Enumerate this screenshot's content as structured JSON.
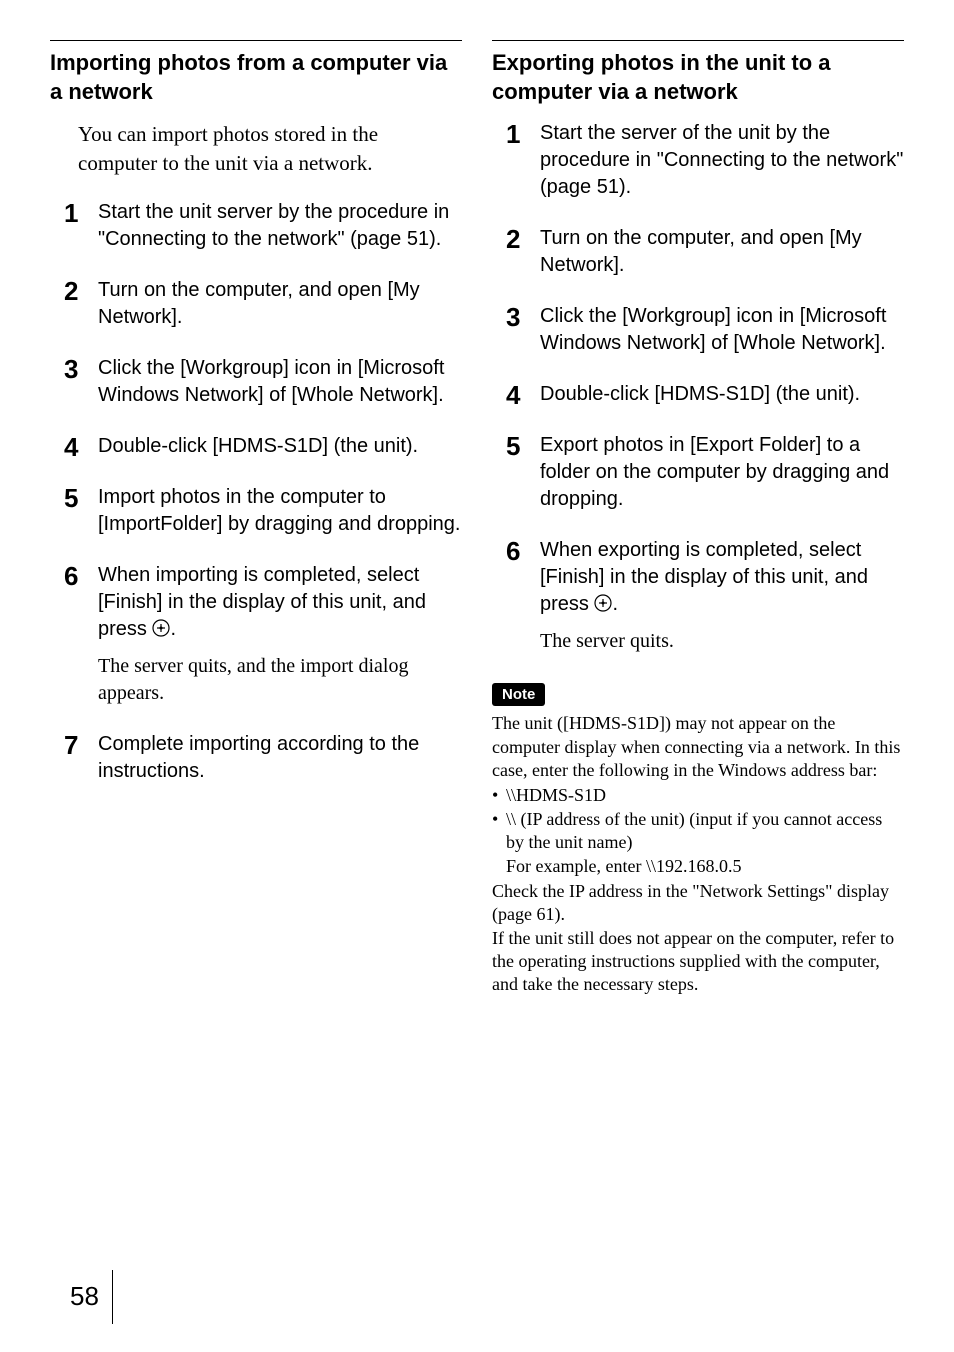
{
  "left": {
    "heading": "Importing photos from a computer via a network",
    "intro": "You can import photos stored in the computer to the unit via a network.",
    "steps": [
      {
        "n": "1",
        "text": "Start the unit server by the procedure in \"Connecting to the network\" (page 51)."
      },
      {
        "n": "2",
        "text": "Turn on the computer, and open [My Network]."
      },
      {
        "n": "3",
        "text": "Click the [Workgroup] icon in [Microsoft Windows Network] of [Whole Network]."
      },
      {
        "n": "4",
        "text": "Double-click [HDMS-S1D] (the unit)."
      },
      {
        "n": "5",
        "text": "Import photos in the computer to [ImportFolder] by dragging and dropping."
      },
      {
        "n": "6",
        "text_pre": "When importing is completed, select [Finish] in the display of this unit, and press ",
        "text_post": ".",
        "sub": "The server quits, and the import dialog appears.",
        "icon": true
      },
      {
        "n": "7",
        "text": "Complete importing according to the instructions."
      }
    ]
  },
  "right": {
    "heading": "Exporting photos in the unit to a computer via a network",
    "steps": [
      {
        "n": "1",
        "text": "Start the server of the unit by the procedure in \"Connecting to the network\" (page 51)."
      },
      {
        "n": "2",
        "text": "Turn on the computer, and open [My Network]."
      },
      {
        "n": "3",
        "text": "Click the [Workgroup] icon in [Microsoft Windows Network] of [Whole Network]."
      },
      {
        "n": "4",
        "text": "Double-click [HDMS-S1D] (the unit)."
      },
      {
        "n": "5",
        "text": "Export photos in [Export Folder] to a folder on the computer by dragging and dropping."
      },
      {
        "n": "6",
        "text_pre": "When exporting is completed, select [Finish] in the display of this unit, and press ",
        "text_post": ".",
        "sub": "The server quits.",
        "icon": true
      }
    ],
    "note_label": "Note",
    "note_p1": "The unit ([HDMS-S1D]) may not appear on the computer display when connecting via a network. In this case, enter the following in the Windows address bar:",
    "note_b1": "\\\\HDMS-S1D",
    "note_b2a": "\\\\ (IP address of the unit) (input if you cannot access by the unit name)",
    "note_b2b": "For example, enter \\\\192.168.0.5",
    "note_p2": "Check the IP address in the \"Network Settings\" display (page 61).",
    "note_p3": "If the unit still does not appear on the computer, refer to the operating instructions supplied with the computer, and take the necessary steps."
  },
  "page_number": "58"
}
